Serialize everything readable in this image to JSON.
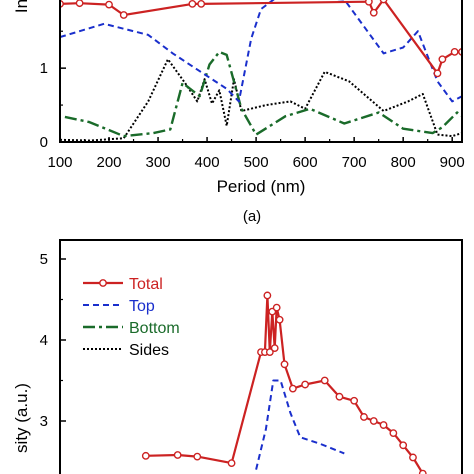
{
  "chart_data": [
    {
      "type": "line",
      "panel_label": "(a)",
      "xlabel": "Period (nm)",
      "ylabel_visible_fragment": "In",
      "xlim": [
        100,
        920
      ],
      "ylim": [
        0,
        1.95
      ],
      "x_ticks": [
        100,
        200,
        300,
        400,
        500,
        600,
        700,
        800,
        900
      ],
      "x_tick_labels": [
        "100",
        "200",
        "300",
        "400",
        "500",
        "600",
        "700",
        "800",
        "900"
      ],
      "y_ticks": [
        0,
        1
      ],
      "y_tick_labels": [
        "0",
        "1"
      ],
      "colors": {
        "total": "#cc2222",
        "top": "#1a2fcc",
        "bottom": "#1a6b2a",
        "sides": "#000000"
      },
      "series": [
        {
          "key": "total",
          "x": [
            100,
            140,
            200,
            230,
            370,
            388,
            730,
            740,
            760,
            870,
            880,
            905,
            920
          ],
          "y": [
            1.87,
            1.88,
            1.86,
            1.72,
            1.87,
            1.87,
            1.9,
            1.75,
            1.93,
            0.93,
            1.12,
            1.22,
            1.22
          ]
        },
        {
          "key": "top",
          "x": [
            100,
            190,
            280,
            330,
            380,
            440,
            465,
            490,
            510,
            540,
            575,
            620,
            680,
            760,
            800,
            830,
            870,
            900,
            920
          ],
          "y": [
            1.42,
            1.6,
            1.45,
            1.2,
            0.98,
            0.72,
            0.55,
            1.4,
            1.8,
            1.95,
            1.95,
            1.95,
            1.93,
            1.2,
            1.28,
            1.5,
            0.82,
            0.55,
            0.62
          ]
        },
        {
          "key": "bottom",
          "x": [
            110,
            160,
            230,
            290,
            325,
            350,
            385,
            405,
            425,
            440,
            470,
            500,
            560,
            610,
            680,
            750,
            800,
            860,
            880,
            910,
            920
          ],
          "y": [
            0.34,
            0.27,
            0.08,
            0.12,
            0.17,
            0.8,
            0.62,
            1.05,
            1.22,
            1.18,
            0.45,
            0.1,
            0.35,
            0.45,
            0.25,
            0.4,
            0.18,
            0.12,
            0.2,
            0.4,
            0.35
          ]
        },
        {
          "key": "sides",
          "x": [
            100,
            160,
            230,
            280,
            320,
            355,
            380,
            395,
            410,
            425,
            440,
            455,
            470,
            520,
            570,
            600,
            640,
            690,
            760,
            810,
            840,
            870,
            900,
            920
          ],
          "y": [
            0.03,
            0.02,
            0.05,
            0.55,
            1.12,
            0.8,
            0.55,
            0.85,
            0.52,
            0.7,
            0.22,
            0.85,
            0.42,
            0.5,
            0.55,
            0.45,
            0.95,
            0.82,
            0.42,
            0.55,
            0.65,
            0.1,
            0.08,
            0.12
          ]
        }
      ]
    },
    {
      "type": "line",
      "ylabel_visible_fragment": "sity (a.u.)",
      "xlim": [
        100,
        920
      ],
      "ylim": [
        2.4,
        5.3
      ],
      "y_ticks": [
        3,
        4,
        5
      ],
      "y_tick_labels": [
        "3",
        "4",
        "5"
      ],
      "legend": {
        "placement": "top-left",
        "entries": [
          "Total",
          "Top",
          "Bottom",
          "Sides"
        ]
      },
      "colors": {
        "total": "#cc2222",
        "top": "#1a2fcc",
        "bottom": "#1a6b2a",
        "sides": "#000000"
      },
      "series": [
        {
          "key": "total",
          "name": "Total",
          "x": [
            275,
            340,
            380,
            450,
            510,
            518,
            523,
            528,
            533,
            538,
            542,
            548,
            558,
            575,
            600,
            640,
            670,
            700,
            720,
            740,
            760,
            780,
            800,
            820,
            840
          ],
          "y": [
            2.57,
            2.58,
            2.56,
            2.48,
            3.85,
            3.85,
            4.55,
            3.85,
            4.35,
            3.9,
            4.4,
            4.25,
            3.7,
            3.4,
            3.45,
            3.5,
            3.3,
            3.25,
            3.05,
            3.0,
            2.95,
            2.85,
            2.7,
            2.55,
            2.35
          ]
        },
        {
          "key": "top",
          "name": "Top",
          "x": [
            500,
            520,
            535,
            550,
            570,
            590,
            630,
            680
          ],
          "y": [
            2.4,
            2.9,
            3.5,
            3.5,
            3.1,
            2.8,
            2.72,
            2.6
          ]
        },
        {
          "key": "bottom",
          "name": "Bottom",
          "x": [],
          "y": []
        },
        {
          "key": "sides",
          "name": "Sides",
          "x": [],
          "y": []
        }
      ]
    }
  ]
}
